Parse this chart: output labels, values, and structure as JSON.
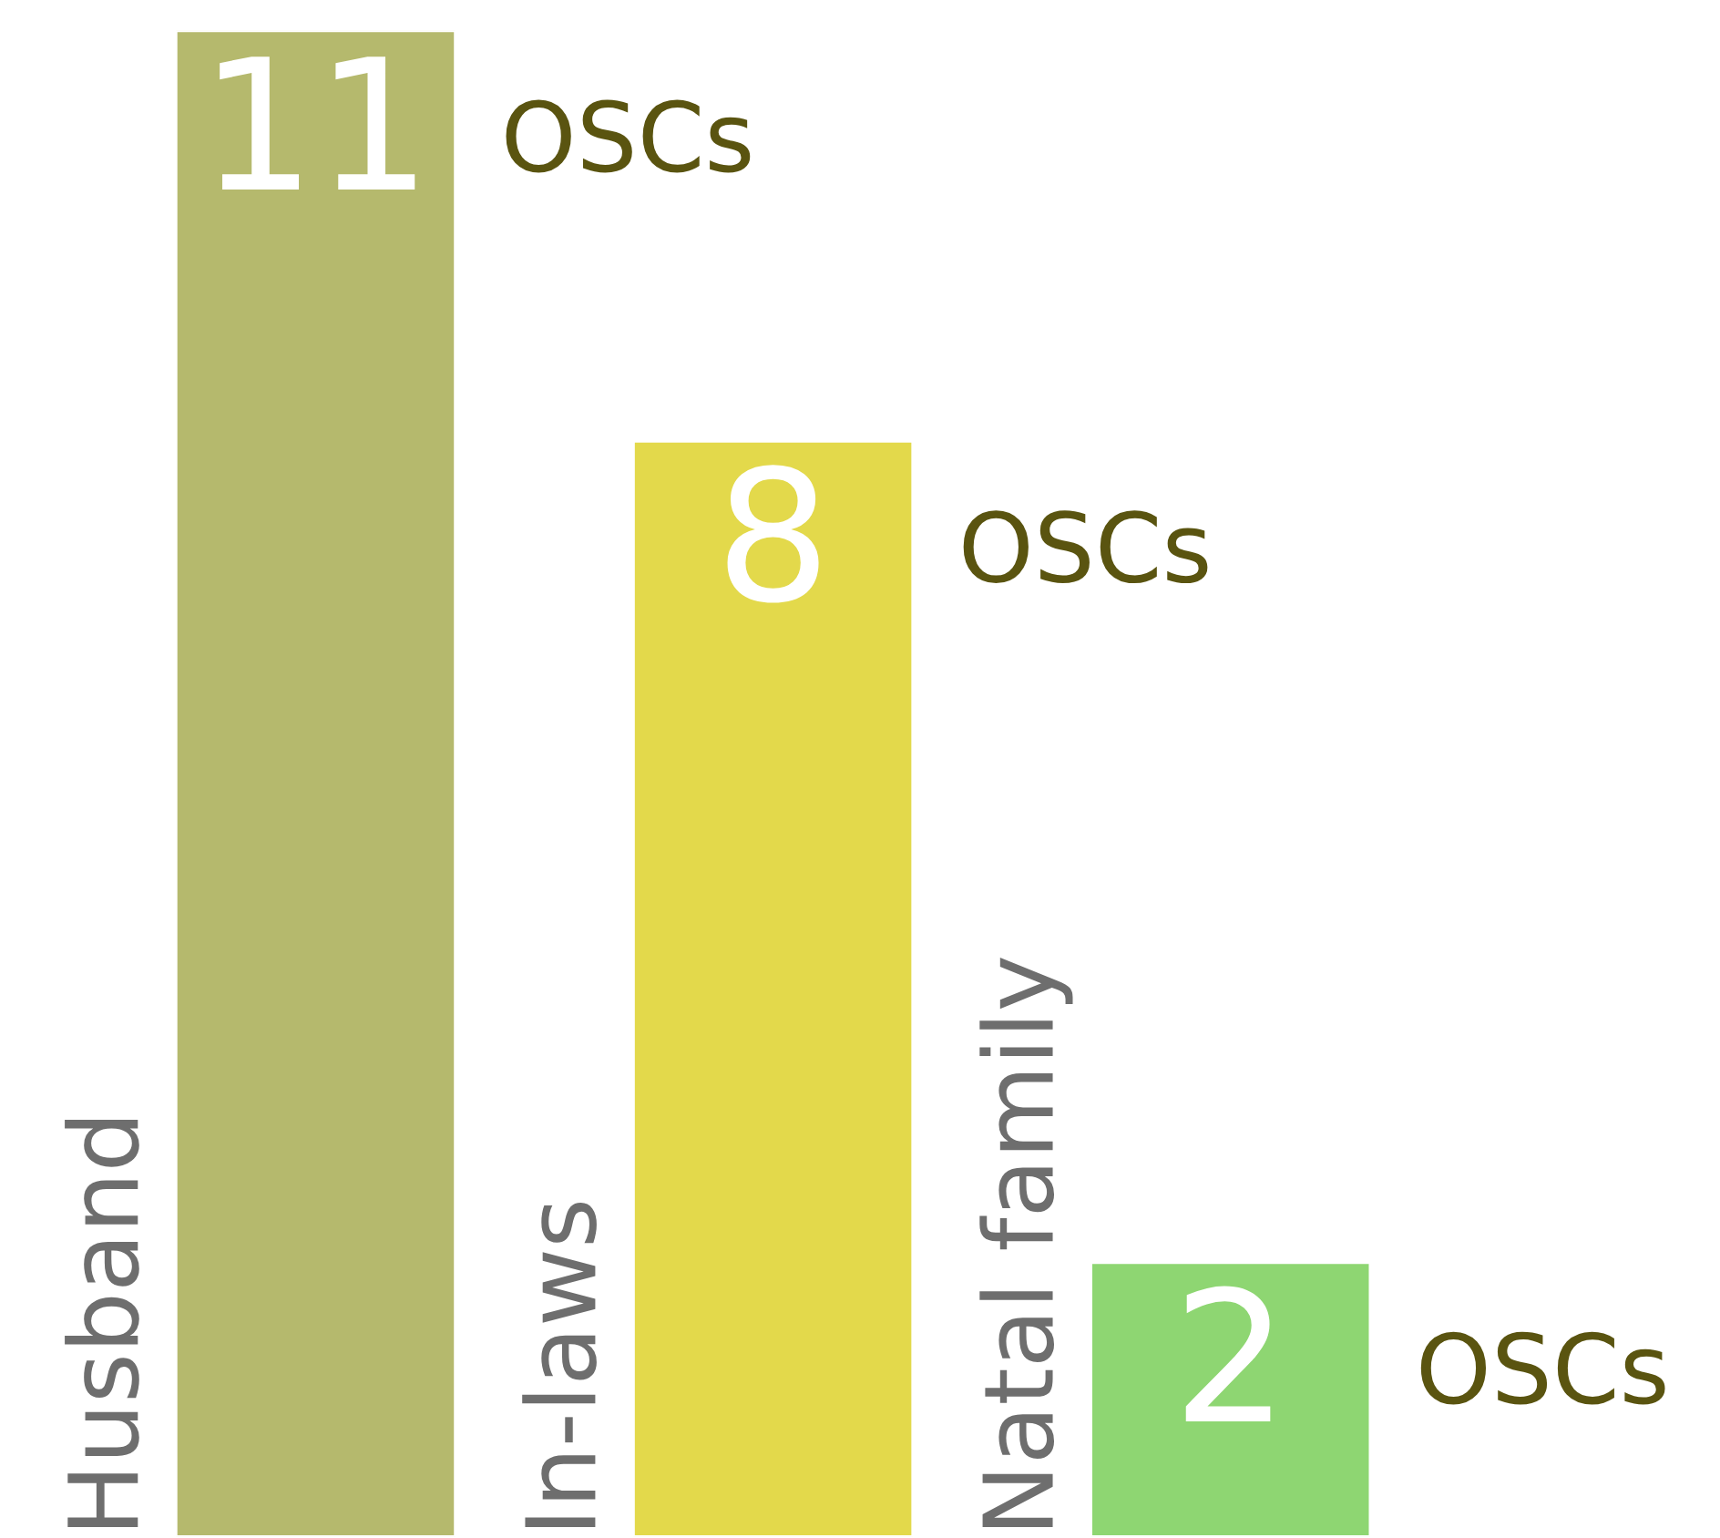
{
  "chart_data": {
    "type": "bar",
    "categories": [
      "Husband",
      "In-laws",
      "Natal family"
    ],
    "values": [
      11,
      8,
      2
    ],
    "colors": [
      "#b5b96d",
      "#e3d94b",
      "#8ed672"
    ],
    "data_labels": true,
    "annotations": [
      "OSCs",
      "OSCs",
      "OSCs"
    ]
  }
}
